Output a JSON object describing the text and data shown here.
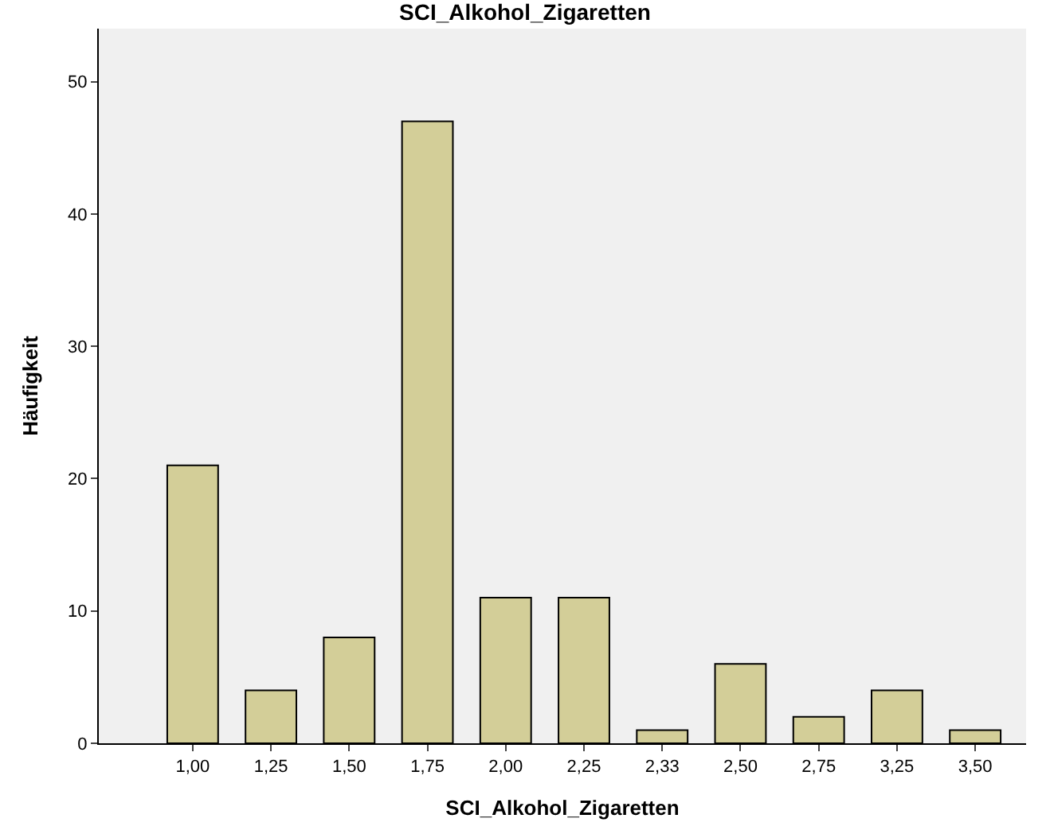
{
  "chart_data": {
    "type": "bar",
    "title": "SCI_Alkohol_Zigaretten",
    "xlabel": "SCI_Alkohol_Zigaretten",
    "ylabel": "Häufigkeit",
    "categories": [
      "1,00",
      "1,25",
      "1,50",
      "1,75",
      "2,00",
      "2,25",
      "2,33",
      "2,50",
      "2,75",
      "3,25",
      "3,50"
    ],
    "values": [
      21,
      4,
      8,
      47,
      11,
      11,
      1,
      6,
      2,
      4,
      1
    ],
    "color": "#d3ce98",
    "ylim": [
      0,
      54
    ],
    "yticks": [
      0,
      10,
      20,
      30,
      40,
      50
    ],
    "grid": false,
    "legend": false
  }
}
